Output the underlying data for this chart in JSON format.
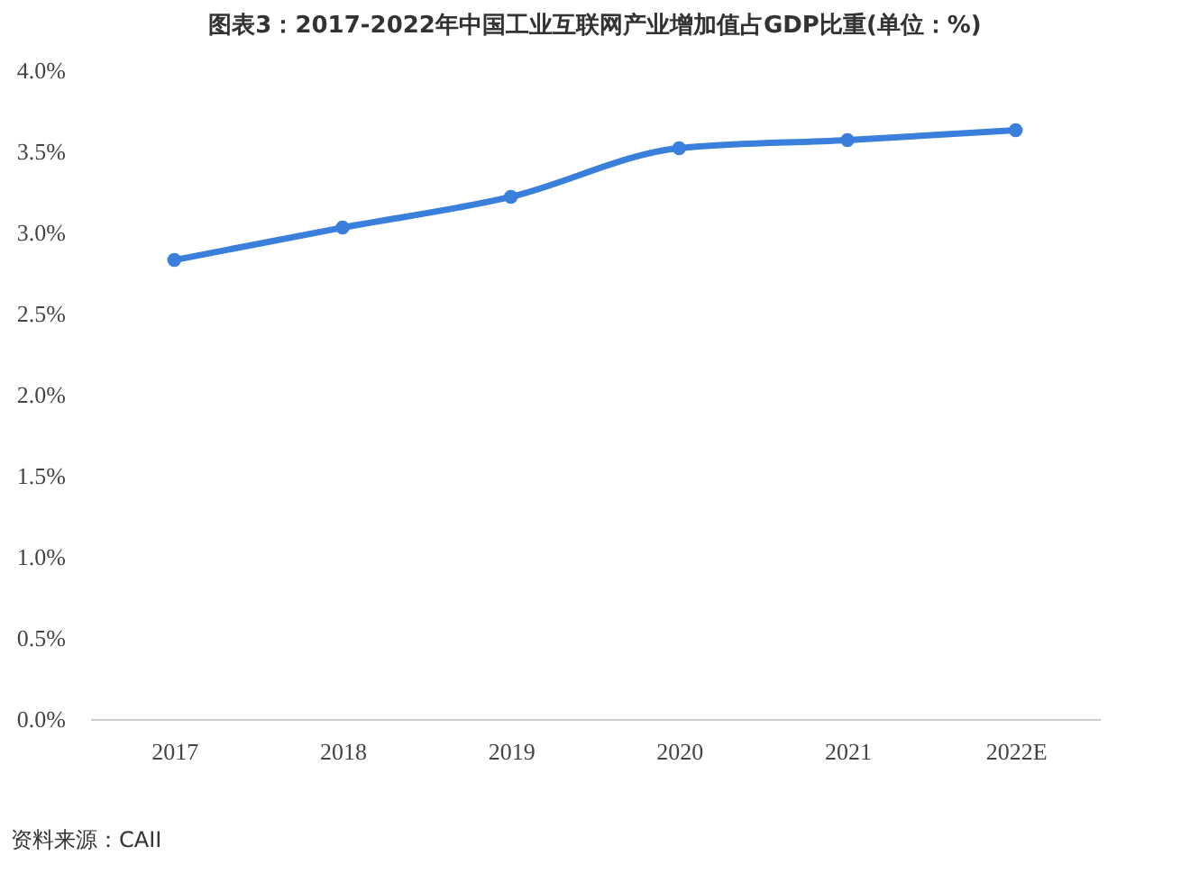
{
  "chart_data": {
    "type": "line",
    "title": "图表3：2017-2022年中国工业互联网产业增加值占GDP比重(单位：%)",
    "categories": [
      "2017",
      "2018",
      "2019",
      "2020",
      "2021",
      "2022E"
    ],
    "series": [
      {
        "color": "#3a7fdc",
        "values": [
          2.83,
          3.03,
          3.22,
          3.52,
          3.57,
          3.63
        ]
      }
    ],
    "ylim": [
      0,
      4
    ],
    "yticks": [
      {
        "value": 0,
        "label": "0.0%"
      },
      {
        "value": 0.5,
        "label": "0.5%"
      },
      {
        "value": 1,
        "label": "1.0%"
      },
      {
        "value": 1.5,
        "label": "1.5%"
      },
      {
        "value": 2,
        "label": "2.0%"
      },
      {
        "value": 2.5,
        "label": "2.5%"
      },
      {
        "value": 3,
        "label": "3.0%"
      },
      {
        "value": 3.5,
        "label": "3.5%"
      },
      {
        "value": 4,
        "label": "4.0%"
      }
    ],
    "grid": false,
    "legend": false,
    "marker": "circle",
    "line_style": "solid",
    "annotations": [
      "资料来源：CAII"
    ]
  }
}
